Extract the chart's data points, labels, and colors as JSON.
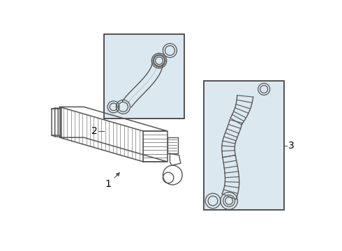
{
  "bg_color": "#ffffff",
  "line_color": "#555555",
  "box_bg": "#dce8f0",
  "box_border": "#444444",
  "label_color": "#000000",
  "fig_width": 4.9,
  "fig_height": 3.6,
  "dpi": 100
}
